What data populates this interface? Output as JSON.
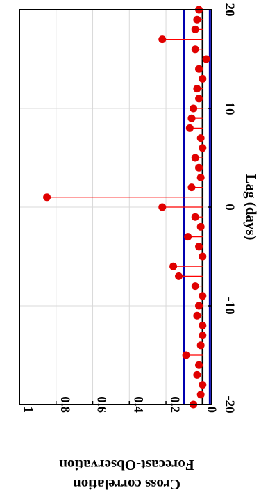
{
  "chart_data": {
    "type": "stem",
    "orientation": "rotated-90",
    "xlabel": "Lag (days)",
    "ylabel_lines": [
      "Cross correlation",
      "Forecast-Observation"
    ],
    "xlim": [
      -20,
      20
    ],
    "ylim": [
      -0.05,
      1.0
    ],
    "x_ticks": [
      -20,
      -10,
      0,
      10,
      20
    ],
    "y_ticks": [
      0,
      0.2,
      0.4,
      0.6,
      0.8,
      1
    ],
    "y_tick_labels": [
      "0",
      "0.2",
      "0.4",
      "0.6",
      "0.8",
      "1"
    ],
    "grid": true,
    "confidence_bounds": [
      -0.04,
      0.1
    ],
    "colors": {
      "stem": "#ff0000",
      "marker": "#e00000",
      "bounds": "#0000b0",
      "zero_line": "#000000",
      "grid": "#d9d9d9"
    },
    "x": [
      -20,
      -19,
      -18,
      -17,
      -16,
      -15,
      -14,
      -13,
      -12,
      -11,
      -10,
      -9,
      -8,
      -7,
      -6,
      -5,
      -4,
      -3,
      -2,
      -1,
      0,
      1,
      2,
      3,
      4,
      5,
      6,
      7,
      8,
      9,
      10,
      11,
      12,
      13,
      14,
      15,
      16,
      17,
      18,
      19,
      20
    ],
    "values": [
      0.05,
      0.01,
      0.0,
      0.03,
      0.02,
      0.09,
      0.01,
      0.0,
      0.0,
      0.03,
      0.02,
      0.0,
      0.04,
      0.13,
      0.16,
      0.0,
      0.02,
      0.08,
      0.01,
      0.04,
      0.22,
      0.85,
      0.06,
      0.01,
      0.02,
      0.04,
      0.0,
      0.01,
      0.07,
      0.06,
      0.05,
      0.02,
      0.03,
      0.0,
      0.02,
      -0.02,
      0.04,
      0.22,
      0.04,
      0.03,
      0.02
    ]
  }
}
